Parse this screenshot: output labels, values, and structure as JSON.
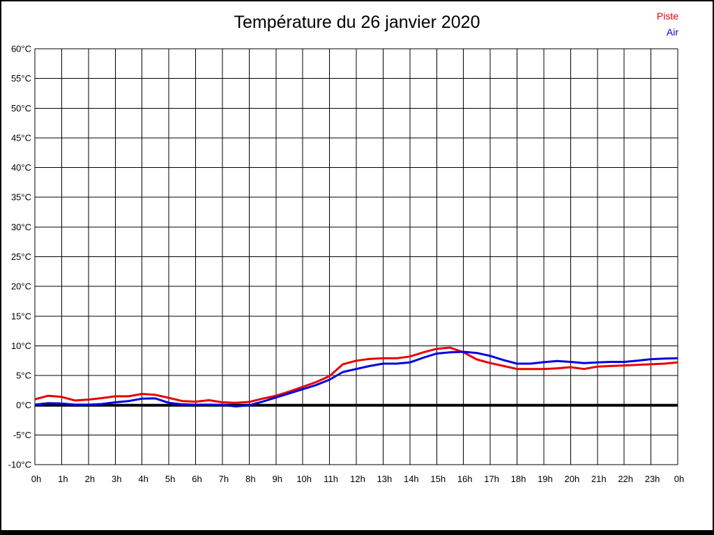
{
  "title": "Température du 26 janvier 2020",
  "legend": [
    {
      "label": "Piste",
      "color": "#e60000"
    },
    {
      "label": "Air",
      "color": "#0000e0"
    }
  ],
  "colors": {
    "grid": "#000000",
    "zero_line": "#000000",
    "background": "#ffffff",
    "piste": "#e60000",
    "air": "#0000e0"
  },
  "chart_data": {
    "type": "line",
    "title": "Température du 26 janvier 2020",
    "xlabel": "",
    "ylabel": "",
    "xlim": [
      0,
      24
    ],
    "ylim": [
      -10,
      60
    ],
    "y_step": 5,
    "grid": true,
    "zero_line_at": 0,
    "legend_position": "top-right",
    "y_tick_labels": [
      "60°C",
      "55°C",
      "50°C",
      "45°C",
      "40°C",
      "35°C",
      "30°C",
      "25°C",
      "20°C",
      "15°C",
      "10°C",
      "5°C",
      "0°C",
      "-5°C",
      "-10°C"
    ],
    "x_tick_labels": [
      "0h",
      "1h",
      "2h",
      "3h",
      "4h",
      "5h",
      "6h",
      "7h",
      "8h",
      "9h",
      "10h",
      "11h",
      "12h",
      "13h",
      "14h",
      "15h",
      "16h",
      "17h",
      "18h",
      "19h",
      "20h",
      "21h",
      "22h",
      "23h",
      "0h"
    ],
    "series": [
      {
        "name": "Piste",
        "color": "#e60000",
        "x": [
          0,
          0.5,
          1,
          1.5,
          2,
          2.5,
          3,
          3.5,
          4,
          4.5,
          5,
          5.5,
          6,
          6.5,
          7,
          7.5,
          8,
          8.5,
          9,
          9.5,
          10,
          10.5,
          11,
          11.5,
          12,
          12.5,
          13,
          13.5,
          14,
          14.5,
          15,
          15.5,
          16,
          16.5,
          17,
          17.5,
          18,
          18.5,
          19,
          19.5,
          20,
          20.5,
          21,
          21.5,
          22,
          22.5,
          23,
          23.5,
          24
        ],
        "values": [
          1.0,
          1.6,
          1.4,
          0.8,
          0.95,
          1.2,
          1.5,
          1.5,
          1.9,
          1.75,
          1.25,
          0.7,
          0.6,
          0.85,
          0.5,
          0.4,
          0.55,
          1.1,
          1.6,
          2.3,
          3.1,
          3.9,
          4.9,
          6.9,
          7.5,
          7.8,
          7.9,
          7.9,
          8.2,
          8.9,
          9.5,
          9.7,
          8.9,
          7.7,
          7.1,
          6.6,
          6.1,
          6.1,
          6.1,
          6.2,
          6.4,
          6.1,
          6.5,
          6.6,
          6.7,
          6.8,
          6.9,
          7.0,
          7.2
        ]
      },
      {
        "name": "Air",
        "color": "#0000e0",
        "x": [
          0,
          0.5,
          1,
          1.5,
          2,
          2.5,
          3,
          3.5,
          4,
          4.5,
          5,
          5.5,
          6,
          6.5,
          7,
          7.5,
          8,
          8.5,
          9,
          9.5,
          10,
          10.5,
          11,
          11.5,
          12,
          12.5,
          13,
          13.5,
          14,
          14.5,
          15,
          15.5,
          16,
          16.5,
          17,
          17.5,
          18,
          18.5,
          19,
          19.5,
          20,
          20.5,
          21,
          21.5,
          22,
          22.5,
          23,
          23.5,
          24
        ],
        "values": [
          0.1,
          0.35,
          0.3,
          0.1,
          0.1,
          0.2,
          0.5,
          0.7,
          1.1,
          1.15,
          0.4,
          0.15,
          0.1,
          0.1,
          0.05,
          -0.2,
          0.0,
          0.6,
          1.3,
          2.0,
          2.7,
          3.4,
          4.3,
          5.6,
          6.1,
          6.6,
          7.0,
          7.0,
          7.2,
          8.0,
          8.7,
          8.9,
          9.0,
          8.8,
          8.3,
          7.6,
          7.0,
          7.0,
          7.25,
          7.45,
          7.3,
          7.1,
          7.2,
          7.3,
          7.3,
          7.5,
          7.75,
          7.85,
          7.9
        ]
      }
    ]
  }
}
